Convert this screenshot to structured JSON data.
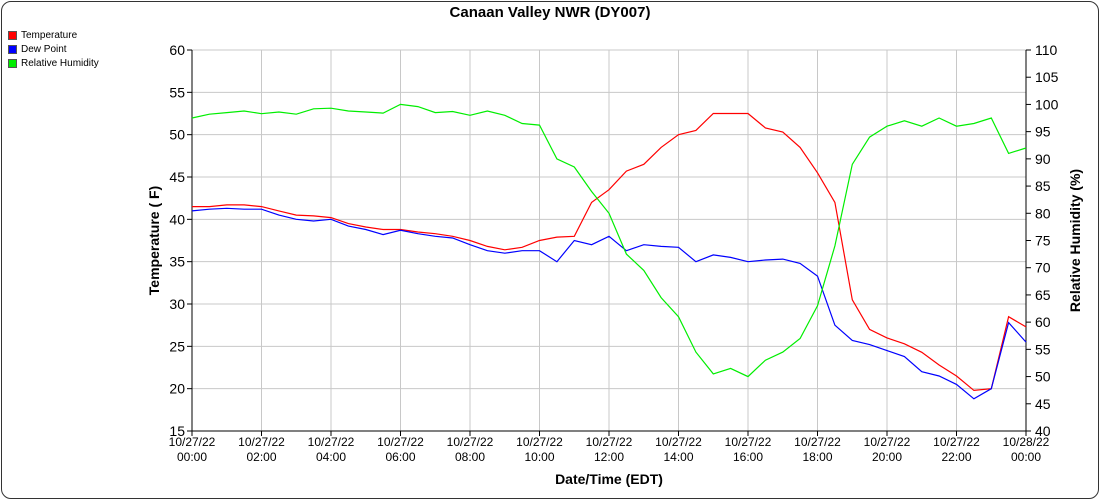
{
  "chart_data": {
    "type": "line",
    "title": "Canaan Valley NWR (DY007)",
    "xlabel": "Date/Time (EDT)",
    "ylabel": "Temperature ( F)",
    "y2label": "Relative Humidity (%)",
    "ylim": [
      15,
      60
    ],
    "y2lim": [
      40,
      110
    ],
    "yticks": [
      "15",
      "20",
      "25",
      "30",
      "35",
      "40",
      "45",
      "50",
      "55",
      "60"
    ],
    "y2ticks": [
      "40",
      "45",
      "50",
      "55",
      "60",
      "65",
      "70",
      "75",
      "80",
      "85",
      "90",
      "95",
      "100",
      "105",
      "110"
    ],
    "xticks": [
      [
        "10/27/22",
        "00:00"
      ],
      [
        "10/27/22",
        "02:00"
      ],
      [
        "10/27/22",
        "04:00"
      ],
      [
        "10/27/22",
        "06:00"
      ],
      [
        "10/27/22",
        "08:00"
      ],
      [
        "10/27/22",
        "10:00"
      ],
      [
        "10/27/22",
        "12:00"
      ],
      [
        "10/27/22",
        "14:00"
      ],
      [
        "10/27/22",
        "16:00"
      ],
      [
        "10/27/22",
        "18:00"
      ],
      [
        "10/27/22",
        "20:00"
      ],
      [
        "10/27/22",
        "22:00"
      ],
      [
        "10/28/22",
        "00:00"
      ]
    ],
    "grid": true,
    "legend_placement": "top-left",
    "x_hours": [
      0,
      0.5,
      1,
      1.5,
      2,
      2.5,
      3,
      3.5,
      4,
      4.5,
      5,
      5.5,
      6,
      6.5,
      7,
      7.5,
      8,
      8.5,
      9,
      9.5,
      10,
      10.5,
      11,
      11.5,
      12,
      12.5,
      13,
      13.5,
      14,
      14.5,
      15,
      15.5,
      16,
      16.5,
      17,
      17.5,
      18,
      18.5,
      19,
      19.5,
      20,
      20.5,
      21,
      21.5,
      22,
      22.5,
      23,
      23.5,
      24
    ],
    "series": [
      {
        "name": "Temperature",
        "axis": "left",
        "color": "#ff0000",
        "values": [
          41.5,
          41.5,
          41.7,
          41.7,
          41.5,
          41.0,
          40.5,
          40.4,
          40.2,
          39.5,
          39.1,
          38.8,
          38.8,
          38.5,
          38.3,
          38.0,
          37.5,
          36.8,
          36.4,
          36.7,
          37.5,
          37.9,
          38.0,
          42.0,
          43.5,
          45.7,
          46.5,
          48.5,
          50.0,
          50.5,
          52.5,
          52.5,
          52.5,
          50.8,
          50.3,
          48.5,
          45.5,
          42.0,
          30.5,
          27.0,
          26.0,
          25.3,
          24.3,
          22.8,
          21.5,
          19.8,
          20.0,
          28.5,
          27.3
        ]
      },
      {
        "name": "Dew Point",
        "axis": "left",
        "color": "#0000ff",
        "values": [
          41.0,
          41.2,
          41.3,
          41.2,
          41.2,
          40.5,
          40.0,
          39.8,
          40.0,
          39.2,
          38.8,
          38.2,
          38.7,
          38.3,
          38.0,
          37.8,
          37.0,
          36.3,
          36.0,
          36.3,
          36.3,
          35.0,
          37.5,
          37.0,
          38.0,
          36.3,
          37.0,
          36.8,
          36.7,
          35.0,
          35.8,
          35.5,
          35.0,
          35.2,
          35.3,
          34.8,
          33.3,
          27.5,
          25.7,
          25.2,
          24.5,
          23.8,
          22.0,
          21.5,
          20.5,
          18.8,
          20.0,
          27.8,
          25.5
        ]
      },
      {
        "name": "Relative Humidity",
        "axis": "right",
        "color": "#00ee00",
        "values": [
          97.5,
          98.2,
          98.5,
          98.8,
          98.3,
          98.6,
          98.2,
          99.2,
          99.3,
          98.8,
          98.6,
          98.4,
          100,
          99.6,
          98.5,
          98.7,
          98.0,
          98.8,
          98.0,
          96.5,
          96.2,
          90.0,
          88.5,
          84.0,
          80.0,
          72.5,
          69.5,
          64.5,
          61.0,
          54.5,
          50.5,
          51.5,
          50.0,
          53.0,
          54.5,
          57.0,
          63.0,
          74.0,
          89.0,
          94.0,
          96.0,
          97.0,
          96.0,
          97.5,
          96.0,
          96.5,
          97.5,
          91.0,
          92.0
        ]
      }
    ]
  }
}
